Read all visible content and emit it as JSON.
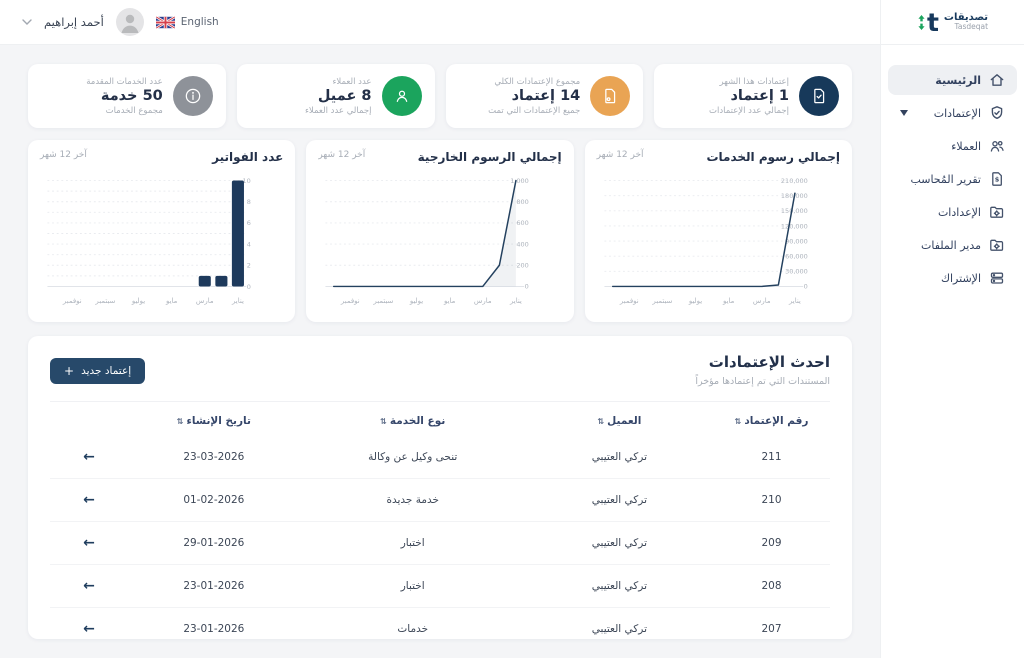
{
  "brand": {
    "name_ar": "تصديقات",
    "name_en": "Tasdeqat"
  },
  "topbar": {
    "user_name": "أحمد إبراهيم",
    "language_label": "English"
  },
  "sidebar": {
    "items": [
      {
        "label": "الرئيسية",
        "icon": "home-icon",
        "active": true
      },
      {
        "label": "الإعتمادات",
        "icon": "shield-check-icon",
        "has_caret": true
      },
      {
        "label": "العملاء",
        "icon": "users-icon"
      },
      {
        "label": "تقرير المُحاسب",
        "icon": "accountant-report-icon"
      },
      {
        "label": "الإعدادات",
        "icon": "settings-folder-icon"
      },
      {
        "label": "مدير الملفات",
        "icon": "file-manager-icon"
      },
      {
        "label": "الإشتراك",
        "icon": "subscription-icon"
      }
    ]
  },
  "stats": [
    {
      "top": "إعتمادات هذا الشهر",
      "value": "1 إعتماد",
      "bottom": "إجمالي عدد الإعتمادات",
      "icon": "document-check-icon",
      "color": "#17395a"
    },
    {
      "top": "مجموع الإعتمادات الكلي",
      "value": "14 إعتماد",
      "bottom": "جميع الإعتمادات التي تمت",
      "icon": "document-icon",
      "color": "#e9a454"
    },
    {
      "top": "عدد العملاء",
      "value": "8 عميل",
      "bottom": "إجمالي عدد العملاء",
      "icon": "user-icon",
      "color": "#1ba45d"
    },
    {
      "top": "عدد الخدمات المقدمة",
      "value": "50 خدمة",
      "bottom": "مجموع الخدمات",
      "icon": "info-icon",
      "color": "#8e9299"
    }
  ],
  "chart_data": [
    {
      "type": "line",
      "title": "إجمالي رسوم الخدمات",
      "period_label": "آخر 12 شهر",
      "categories_rtl": [
        "يناير",
        "فبراير",
        "مارس",
        "أبريل",
        "مايو",
        "يونيو",
        "يوليو",
        "أغسطس",
        "سبتمبر",
        "أكتوبر",
        "نوفمبر",
        "ديسمبر"
      ],
      "values_rtl": [
        185000,
        3000,
        0,
        0,
        0,
        0,
        0,
        0,
        0,
        0,
        0,
        0
      ],
      "x_tick_labels": [
        "يناير",
        "مارس",
        "مايو",
        "يوليو",
        "سبتمبر",
        "نوفمبر"
      ],
      "ylim": [
        0,
        210000
      ],
      "y_tick_labels": [
        "0",
        "30,000",
        "60,000",
        "90,000",
        "120,000",
        "150,000",
        "180,000",
        "210,000"
      ],
      "grid_on": true,
      "color": "#24415f",
      "area": false
    },
    {
      "type": "line",
      "title": "إجمالي الرسوم الخارجية",
      "period_label": "آخر 12 شهر",
      "categories_rtl": [
        "يناير",
        "فبراير",
        "مارس",
        "أبريل",
        "مايو",
        "يونيو",
        "يوليو",
        "أغسطس",
        "سبتمبر",
        "أكتوبر",
        "نوفمبر",
        "ديسمبر"
      ],
      "values_rtl": [
        1000,
        200,
        0,
        0,
        0,
        0,
        0,
        0,
        0,
        0,
        0,
        0
      ],
      "x_tick_labels": [
        "يناير",
        "مارس",
        "مايو",
        "يوليو",
        "سبتمبر",
        "نوفمبر"
      ],
      "ylim": [
        0,
        1000
      ],
      "y_tick_labels": [
        "0",
        "200",
        "400",
        "600",
        "800",
        "1,000"
      ],
      "grid_on": true,
      "color": "#24415f",
      "area": true
    },
    {
      "type": "bar",
      "title": "عدد الفواتير",
      "period_label": "آخر 12 شهر",
      "categories_rtl": [
        "يناير",
        "فبراير",
        "مارس",
        "أبريل",
        "مايو",
        "يونيو",
        "يوليو",
        "أغسطس",
        "سبتمبر",
        "أكتوبر",
        "نوفمبر",
        "ديسمبر"
      ],
      "values_rtl": [
        10,
        1,
        1,
        0,
        0,
        0,
        0,
        0,
        0,
        0,
        0,
        0
      ],
      "x_tick_labels": [
        "يناير",
        "مارس",
        "مايو",
        "يوليو",
        "سبتمبر",
        "نوفمبر"
      ],
      "ylim": [
        0,
        10
      ],
      "y_tick_labels": [
        "0",
        "2",
        "4",
        "6",
        "8",
        "10"
      ],
      "grid_divisions": 10,
      "grid_on": true,
      "color": "#1e3a5c",
      "area": false
    }
  ],
  "table": {
    "title": "احدث الإعتمادات",
    "subtitle": "المستندات التي تم إعتمادها مؤخراً",
    "new_button": "إعتماد جديد",
    "columns": [
      "رقم الإعتماد",
      "العميل",
      "نوع الخدمة",
      "تاريخ الإنشاء"
    ],
    "rows": [
      {
        "id": "211",
        "client": "تركي العتيبي",
        "service": "تنحى وكيل عن وكالة",
        "date": "23-03-2026"
      },
      {
        "id": "210",
        "client": "تركي العتيبي",
        "service": "خدمة جديدة",
        "date": "01-02-2026"
      },
      {
        "id": "209",
        "client": "تركي العتيبي",
        "service": "اختبار",
        "date": "29-01-2026"
      },
      {
        "id": "208",
        "client": "تركي العتيبي",
        "service": "اختبار",
        "date": "23-01-2026"
      },
      {
        "id": "207",
        "client": "تركي العتيبي",
        "service": "خدمات",
        "date": "23-01-2026"
      }
    ]
  }
}
